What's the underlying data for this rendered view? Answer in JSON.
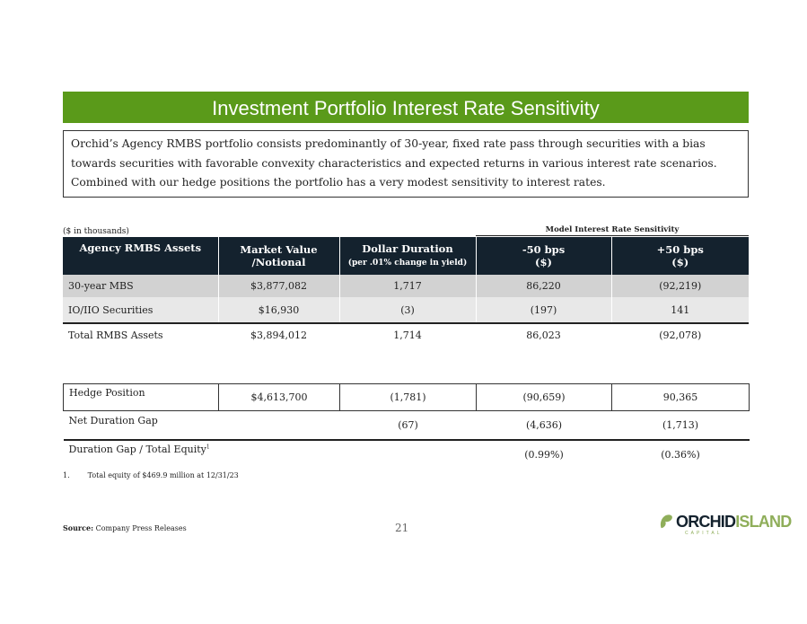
{
  "title": "Investment Portfolio Interest Rate Sensitivity",
  "intro": "Orchid’s Agency RMBS portfolio consists predominantly of 30-year, fixed rate pass through securities with a bias towards securities with favorable convexity characteristics and expected returns in various interest rate scenarios.  Combined with our hedge positions the portfolio has a very modest sensitivity to interest rates.",
  "units": "($ in thousands)",
  "sensitivity_header": "Model Interest Rate Sensitivity",
  "headers": {
    "c1": "Agency RMBS Assets",
    "c2a": "Market Value",
    "c2b": "/Notional",
    "c3a": "Dollar Duration",
    "c3b": "(per .01% change in yield)",
    "c4a": "-50 bps",
    "c4b": "($)",
    "c5a": "+50 bps",
    "c5b": "($)"
  },
  "rows": [
    [
      "30-year MBS",
      "$3,877,082",
      "1,717",
      "86,220",
      "(92,219)"
    ],
    [
      "IO/IIO Securities",
      "$16,930",
      "(3)",
      "(197)",
      "141"
    ],
    [
      "Total RMBS Assets",
      "$3,894,012",
      "1,714",
      "86,023",
      "(92,078)"
    ]
  ],
  "rows2": [
    [
      "Hedge Position",
      "$4,613,700",
      "(1,781)",
      "(90,659)",
      "90,365"
    ],
    [
      "Net Duration Gap",
      "",
      "(67)",
      "(4,636)",
      "(1,713)"
    ],
    [
      "Duration Gap / Total Equity",
      "",
      "",
      "(0.99%)",
      "(0.36%)"
    ]
  ],
  "equity_sup": "1",
  "footnote": {
    "num": "1.",
    "text": "Total equity of $469.9 million at 12/31/23"
  },
  "source_label": "Source:",
  "source": "Company Press Releases",
  "page": "21",
  "logo": {
    "a": "ORCHID",
    "b": "ISLAND",
    "c": "CAPITAL"
  },
  "colors": {
    "accent": "#5a9a1a",
    "header": "#14222e"
  }
}
